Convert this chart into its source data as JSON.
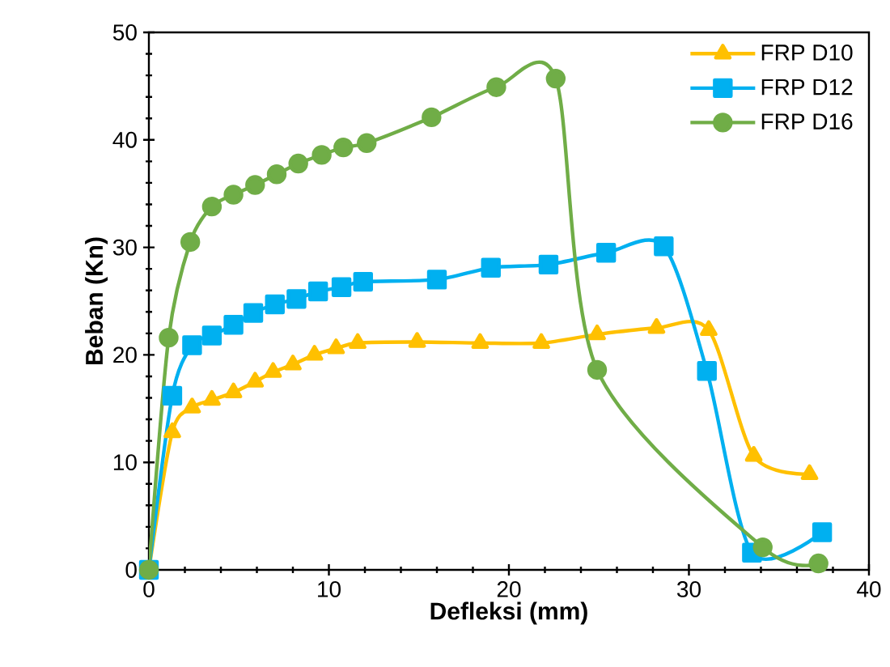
{
  "chart_data": {
    "type": "line",
    "xlabel": "Defleksi (mm)",
    "ylabel": "Beban (Kn)",
    "xlim": [
      0,
      40
    ],
    "xticks": [
      0,
      10,
      20,
      30,
      40
    ],
    "ylim": [
      0,
      50
    ],
    "yticks": [
      0,
      10,
      20,
      30,
      40,
      50
    ],
    "grid": false,
    "legend": "top right",
    "line_style": "solid",
    "series": [
      {
        "name": "FRP D10",
        "color": "#ffc000",
        "marker": "triangle",
        "x": [
          0,
          1.3,
          2.4,
          3.5,
          4.7,
          5.9,
          6.9,
          8.0,
          9.2,
          10.4,
          11.6,
          14.9,
          18.4,
          21.8,
          24.9,
          28.2,
          31.1,
          33.6,
          36.7
        ],
        "values": [
          0,
          12.8,
          15.1,
          15.8,
          16.5,
          17.5,
          18.4,
          19.1,
          20.0,
          20.6,
          21.1,
          21.2,
          21.1,
          21.1,
          21.9,
          22.5,
          22.3,
          10.6,
          8.9
        ]
      },
      {
        "name": "FRP D12",
        "color": "#00b0f0",
        "marker": "square",
        "x": [
          0,
          1.3,
          2.4,
          3.5,
          4.7,
          5.8,
          7.0,
          8.2,
          9.4,
          10.7,
          11.9,
          16.0,
          19.0,
          22.2,
          25.4,
          28.6,
          31.0,
          33.5,
          37.4
        ],
        "values": [
          0,
          16.2,
          20.9,
          21.8,
          22.8,
          23.9,
          24.7,
          25.2,
          25.9,
          26.3,
          26.8,
          27.0,
          28.1,
          28.4,
          29.5,
          30.1,
          18.5,
          1.6,
          3.5
        ]
      },
      {
        "name": "FRP D16",
        "color": "#70ad47",
        "marker": "circle",
        "x": [
          0,
          1.1,
          2.3,
          3.5,
          4.7,
          5.9,
          7.1,
          8.3,
          9.6,
          10.8,
          12.1,
          15.7,
          19.3,
          22.6,
          24.9,
          34.1,
          37.2
        ],
        "values": [
          0,
          21.6,
          30.5,
          33.8,
          34.9,
          35.8,
          36.8,
          37.8,
          38.6,
          39.3,
          39.7,
          42.1,
          44.9,
          45.7,
          18.6,
          2.1,
          0.6
        ]
      }
    ]
  }
}
